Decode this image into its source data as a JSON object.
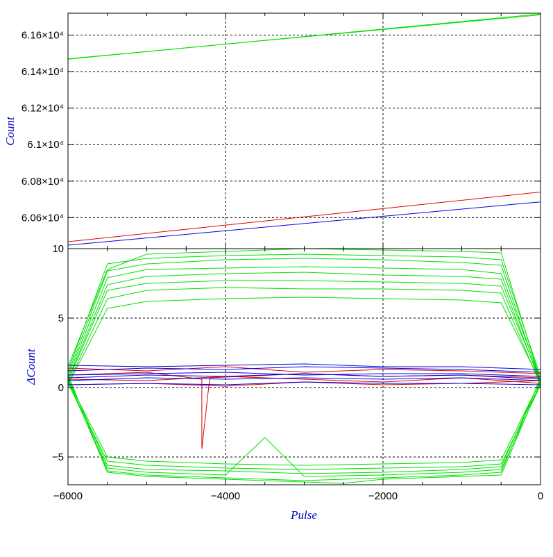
{
  "colors": {
    "green": "#00e000",
    "red": "#e00000",
    "blue": "#0000e0",
    "axis_title": "#0000c0",
    "grid": "#000000"
  },
  "chart_data": [
    {
      "type": "line",
      "panel": "top",
      "ylabel": "Count",
      "grid": true,
      "xlim": [
        -6000,
        0
      ],
      "ylim": [
        60430,
        61720
      ],
      "yticks": [
        {
          "value": 60600,
          "label": "6.06×10⁴"
        },
        {
          "value": 60800,
          "label": "6.08×10⁴"
        },
        {
          "value": 61000,
          "label": "6.1×10⁴"
        },
        {
          "value": 61200,
          "label": "6.12×10⁴"
        },
        {
          "value": 61400,
          "label": "6.14×10⁴"
        },
        {
          "value": 61600,
          "label": "6.16×10⁴"
        }
      ],
      "series": [
        {
          "color": "green",
          "x": [
            -6000,
            0
          ],
          "y": [
            61468,
            61716
          ]
        },
        {
          "color": "green",
          "x": [
            -6000,
            0
          ],
          "y": [
            61470,
            61711
          ]
        },
        {
          "color": "red",
          "x": [
            -6000,
            0
          ],
          "y": [
            60468,
            60740
          ]
        },
        {
          "color": "blue",
          "x": [
            -6000,
            0
          ],
          "y": [
            60449,
            60686
          ]
        }
      ]
    },
    {
      "type": "line",
      "panel": "bottom",
      "ylabel": "ΔCount",
      "xlabel": "Pulse",
      "grid": true,
      "xlim": [
        -6000,
        0
      ],
      "ylim": [
        -7,
        10
      ],
      "xticks": [
        {
          "value": -6000,
          "label": "−6000"
        },
        {
          "value": -4000,
          "label": "−4000"
        },
        {
          "value": -2000,
          "label": "−2000"
        },
        {
          "value": 0,
          "label": "0"
        }
      ],
      "yticks": [
        {
          "value": -5,
          "label": "−5"
        },
        {
          "value": 0,
          "label": "0"
        },
        {
          "value": 5,
          "label": "5"
        },
        {
          "value": 10,
          "label": "10"
        }
      ],
      "series": [
        {
          "color": "green",
          "x": [
            -6000,
            -5500,
            -5000,
            -4000,
            -3000,
            -2000,
            -1000,
            -500,
            0
          ],
          "y": [
            1.5,
            8.5,
            9.6,
            9.8,
            10.0,
            9.9,
            9.8,
            9.7,
            0.5
          ]
        },
        {
          "color": "green",
          "x": [
            -6000,
            -5500,
            -5000,
            -4000,
            -3000,
            -2000,
            -1000,
            -500,
            0
          ],
          "y": [
            1.2,
            8.9,
            9.3,
            9.5,
            9.6,
            9.5,
            9.4,
            9.2,
            0.8
          ]
        },
        {
          "color": "green",
          "x": [
            -6000,
            -5500,
            -5000,
            -4000,
            -3000,
            -2000,
            -1000,
            -500,
            0
          ],
          "y": [
            1.0,
            8.4,
            8.9,
            9.2,
            9.3,
            9.2,
            9.0,
            8.8,
            0.4
          ]
        },
        {
          "color": "green",
          "x": [
            -6000,
            -5500,
            -5000,
            -4000,
            -3000,
            -2000,
            -1000,
            -500,
            0
          ],
          "y": [
            0.8,
            7.9,
            8.5,
            8.6,
            8.7,
            8.6,
            8.5,
            8.2,
            0.6
          ]
        },
        {
          "color": "green",
          "x": [
            -6000,
            -5500,
            -5000,
            -4000,
            -3000,
            -2000,
            -1000,
            -500,
            0
          ],
          "y": [
            0.6,
            7.4,
            8.0,
            8.2,
            8.3,
            8.1,
            8.0,
            7.8,
            0.3
          ]
        },
        {
          "color": "green",
          "x": [
            -6000,
            -5500,
            -5000,
            -4000,
            -3000,
            -2000,
            -1000,
            -500,
            0
          ],
          "y": [
            0.5,
            7.0,
            7.5,
            7.7,
            7.7,
            7.6,
            7.5,
            7.3,
            0.5
          ]
        },
        {
          "color": "green",
          "x": [
            -6000,
            -5500,
            -5000,
            -4000,
            -3000,
            -2000,
            -1000,
            -500,
            0
          ],
          "y": [
            0.3,
            6.4,
            7.0,
            7.2,
            7.1,
            7.1,
            7.0,
            6.8,
            0.2
          ]
        },
        {
          "color": "green",
          "x": [
            -6000,
            -5500,
            -5000,
            -4000,
            -3000,
            -2000,
            -1000,
            -500,
            0
          ],
          "y": [
            0.2,
            5.7,
            6.2,
            6.4,
            6.5,
            6.4,
            6.3,
            6.1,
            0.4
          ]
        },
        {
          "color": "green",
          "x": [
            -6000,
            -5500,
            -5000,
            -4000,
            -3000,
            -2000,
            -1000,
            -500,
            0
          ],
          "y": [
            0.5,
            -5.0,
            -5.3,
            -5.5,
            -5.6,
            -5.5,
            -5.4,
            -5.2,
            0.5
          ]
        },
        {
          "color": "green",
          "x": [
            -6000,
            -5500,
            -5000,
            -4000,
            -3000,
            -2000,
            -1000,
            -500,
            0
          ],
          "y": [
            0.3,
            -5.3,
            -5.6,
            -5.8,
            -5.9,
            -5.8,
            -5.7,
            -5.5,
            0.3
          ]
        },
        {
          "color": "green",
          "x": [
            -6000,
            -5500,
            -5000,
            -4000,
            -3000,
            -2000,
            -1000,
            -500,
            0
          ],
          "y": [
            0.7,
            -5.6,
            -5.9,
            -6.0,
            -6.2,
            -6.1,
            -5.9,
            -5.7,
            0.6
          ]
        },
        {
          "color": "green",
          "x": [
            -6000,
            -5500,
            -5000,
            -4000,
            -3500,
            -3000,
            -2000,
            -1000,
            -500,
            0
          ],
          "y": [
            0.4,
            -5.8,
            -6.1,
            -6.3,
            -3.6,
            -6.4,
            -6.3,
            -6.1,
            -5.9,
            0.2
          ]
        },
        {
          "color": "green",
          "x": [
            -6000,
            -5500,
            -5000,
            -4000,
            -3000,
            -2000,
            -1000,
            -500,
            0
          ],
          "y": [
            0.9,
            -6.0,
            -6.3,
            -6.5,
            -6.7,
            -6.5,
            -6.3,
            -6.1,
            0.7
          ]
        },
        {
          "color": "green",
          "x": [
            -6000,
            -5500,
            -5000,
            -4000,
            -3000,
            -2500,
            -2000,
            -1000,
            -500,
            0
          ],
          "y": [
            0.6,
            -6.1,
            -6.4,
            -6.6,
            -6.8,
            -6.9,
            -6.6,
            -6.4,
            -6.3,
            0.4
          ]
        },
        {
          "color": "red",
          "x": [
            -6000,
            -5000,
            -4300,
            -4300,
            -4200,
            -3000,
            -2000,
            -1000,
            0
          ],
          "y": [
            0.9,
            1.1,
            0.6,
            -4.4,
            0.7,
            1.0,
            0.8,
            0.9,
            0.7
          ]
        },
        {
          "color": "red",
          "x": [
            -6000,
            -5000,
            -4000,
            -3000,
            -2000,
            -1000,
            0
          ],
          "y": [
            0.2,
            0.3,
            0.1,
            0.4,
            0.2,
            0.3,
            0.5
          ]
        },
        {
          "color": "red",
          "x": [
            -6000,
            -5000,
            -4000,
            -3000,
            -2000,
            -1000,
            0
          ],
          "y": [
            1.4,
            1.2,
            1.5,
            1.1,
            1.3,
            1.2,
            1.0
          ]
        },
        {
          "color": "red",
          "x": [
            -6000,
            -5000,
            -4000,
            -3000,
            -2000,
            -1000,
            0
          ],
          "y": [
            0.6,
            0.5,
            0.8,
            0.6,
            0.4,
            0.7,
            0.3
          ]
        },
        {
          "color": "blue",
          "x": [
            -6000,
            -5000,
            -4000,
            -3000,
            -2000,
            -1000,
            0
          ],
          "y": [
            1.2,
            1.4,
            1.3,
            1.5,
            1.4,
            1.3,
            1.1
          ]
        },
        {
          "color": "blue",
          "x": [
            -6000,
            -5000,
            -4000,
            -3000,
            -2000,
            -1000,
            0
          ],
          "y": [
            0.9,
            1.0,
            1.1,
            0.9,
            1.0,
            1.0,
            0.8
          ]
        },
        {
          "color": "blue",
          "x": [
            -6000,
            -5000,
            -4000,
            -3000,
            -2000,
            -1000,
            0
          ],
          "y": [
            0.5,
            0.7,
            0.6,
            0.7,
            0.6,
            0.7,
            0.5
          ]
        },
        {
          "color": "blue",
          "x": [
            -6000,
            -5000,
            -4000,
            -3000,
            -2000,
            -1000,
            0
          ],
          "y": [
            0.2,
            0.3,
            0.2,
            0.4,
            0.3,
            0.3,
            0.2
          ]
        },
        {
          "color": "blue",
          "x": [
            -6000,
            -5000,
            -4000,
            -3000,
            -2000,
            -1000,
            0
          ],
          "y": [
            1.6,
            1.5,
            1.6,
            1.7,
            1.5,
            1.5,
            1.3
          ]
        },
        {
          "color": "blue",
          "x": [
            -6000,
            -5000,
            -4000,
            -3000,
            -2000,
            -1000,
            0
          ],
          "y": [
            0.7,
            0.9,
            0.8,
            1.0,
            0.8,
            0.9,
            0.6
          ]
        }
      ]
    }
  ]
}
